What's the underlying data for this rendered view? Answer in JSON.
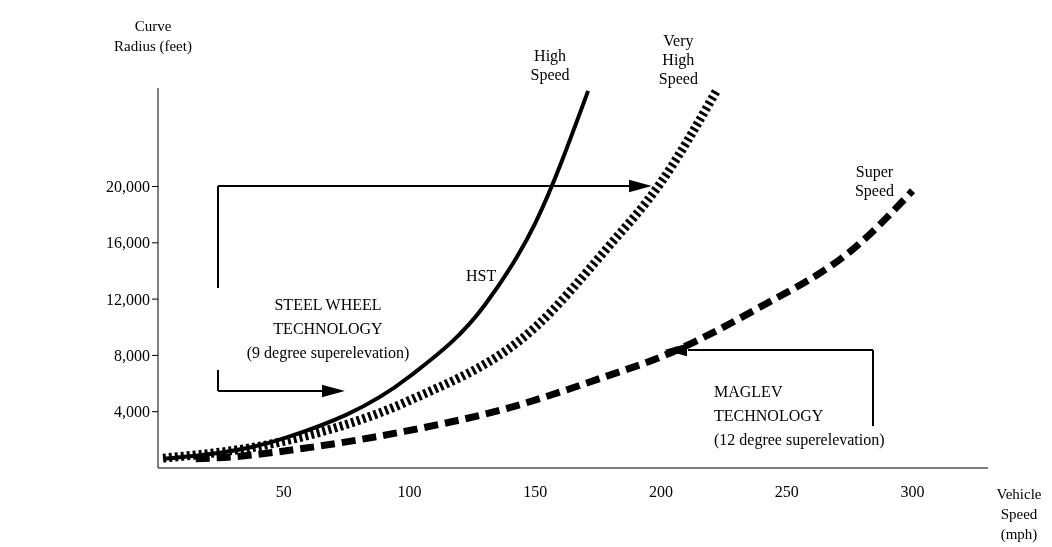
{
  "chart_data": {
    "type": "line",
    "xlabel": "Vehicle Speed (mph)",
    "ylabel": "Curve Radius (feet)",
    "xlim": [
      0,
      330
    ],
    "xticks": [
      50,
      100,
      150,
      200,
      250,
      300
    ],
    "ylim": [
      0,
      27000
    ],
    "yticks": [
      {
        "value": 4000,
        "label": "4,000"
      },
      {
        "value": 8000,
        "label": "8,000"
      },
      {
        "value": 12000,
        "label": "12,000"
      },
      {
        "value": 16000,
        "label": "16,000"
      },
      {
        "value": 20000,
        "label": "20,000"
      }
    ],
    "marker": "none",
    "series": [
      {
        "name": "High Speed",
        "color": "#000000",
        "line_style": "solid",
        "x": [
          2,
          50,
          100,
          130,
          150,
          171
        ],
        "values": [
          650,
          2100,
          6500,
          11600,
          17400,
          26800
        ]
      },
      {
        "name": "Very High Speed",
        "color": "#000000",
        "line_style": "dotted",
        "x": [
          2,
          50,
          100,
          150,
          178,
          200,
          222
        ],
        "values": [
          700,
          1900,
          4800,
          10000,
          15500,
          20300,
          26800
        ]
      },
      {
        "name": "Super Speed",
        "color": "#000000",
        "line_style": "dashed",
        "x": [
          15,
          30,
          58,
          98,
          138,
          178,
          200,
          238,
          278,
          300
        ],
        "values": [
          650,
          800,
          1400,
          2600,
          4200,
          6500,
          7900,
          11300,
          15800,
          19700
        ]
      }
    ],
    "annotations": [
      "HST",
      "STEEL WHEEL\nTECHNOLOGY\n(9 degree superelevation)",
      "MAGLEV\nTECHNOLOGY\n(12 degree superelevation)"
    ]
  }
}
